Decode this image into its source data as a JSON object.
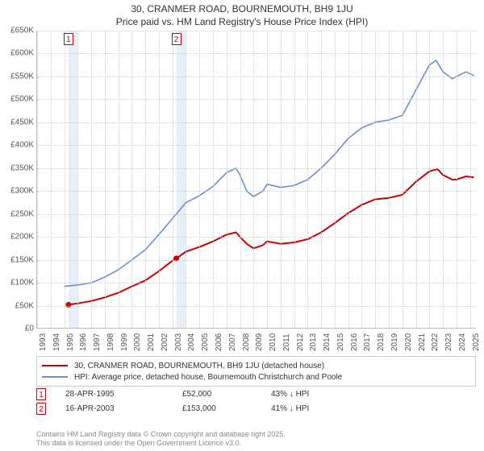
{
  "title": {
    "line1": "30, CRANMER ROAD, BOURNEMOUTH, BH9 1JU",
    "line2": "Price paid vs. HM Land Registry's House Price Index (HPI)"
  },
  "chart": {
    "type": "line",
    "background_color": "#ffffff",
    "grid_color": "#cccccc",
    "axis_color": "#bbbbbb",
    "band_color": "#e6eef7",
    "x_min": 1993,
    "x_max": 2025.5,
    "x_ticks": [
      1993,
      1994,
      1995,
      1996,
      1997,
      1998,
      1999,
      2000,
      2001,
      2002,
      2003,
      2004,
      2005,
      2006,
      2007,
      2008,
      2009,
      2010,
      2011,
      2012,
      2013,
      2014,
      2015,
      2016,
      2017,
      2018,
      2019,
      2020,
      2021,
      2022,
      2023,
      2024,
      2025
    ],
    "y_min": 0,
    "y_max": 650,
    "y_ticks": [
      0,
      50,
      100,
      150,
      200,
      250,
      300,
      350,
      400,
      450,
      500,
      550,
      600,
      650
    ],
    "y_prefix": "£",
    "y_suffix": "K",
    "label_fontsize": 10,
    "bands": [
      {
        "from": 1995.32,
        "to": 1996.0
      },
      {
        "from": 2003.29,
        "to": 2004.0
      }
    ],
    "markers": [
      {
        "label": "1",
        "x": 1995.32,
        "color": "#cc0000"
      },
      {
        "label": "2",
        "x": 2003.29,
        "color": "#cc0000"
      }
    ],
    "series": [
      {
        "name": "price_paid",
        "label": "30, CRANMER ROAD, BOURNEMOUTH, BH9 1JU (detached house)",
        "color": "#cc0000",
        "line_width": 2,
        "dots": [
          {
            "x": 1995.32,
            "y": 52
          },
          {
            "x": 2003.29,
            "y": 153
          }
        ],
        "points": [
          [
            1995.32,
            52
          ],
          [
            1996,
            55
          ],
          [
            1997,
            60
          ],
          [
            1998,
            68
          ],
          [
            1999,
            78
          ],
          [
            2000,
            92
          ],
          [
            2001,
            105
          ],
          [
            2002,
            125
          ],
          [
            2003,
            148
          ],
          [
            2003.29,
            153
          ],
          [
            2004,
            168
          ],
          [
            2005,
            178
          ],
          [
            2006,
            190
          ],
          [
            2007,
            205
          ],
          [
            2007.7,
            210
          ],
          [
            2008,
            200
          ],
          [
            2008.5,
            185
          ],
          [
            2009,
            175
          ],
          [
            2009.7,
            182
          ],
          [
            2010,
            190
          ],
          [
            2011,
            185
          ],
          [
            2012,
            188
          ],
          [
            2013,
            195
          ],
          [
            2014,
            210
          ],
          [
            2015,
            230
          ],
          [
            2016,
            252
          ],
          [
            2017,
            270
          ],
          [
            2018,
            282
          ],
          [
            2019,
            285
          ],
          [
            2020,
            292
          ],
          [
            2021,
            320
          ],
          [
            2022,
            343
          ],
          [
            2022.6,
            348
          ],
          [
            2023,
            335
          ],
          [
            2023.7,
            325
          ],
          [
            2024,
            325
          ],
          [
            2024.7,
            332
          ],
          [
            2025.3,
            330
          ]
        ]
      },
      {
        "name": "hpi",
        "label": "HPI: Average price, detached house, Bournemouth Christchurch and Poole",
        "color": "#6a8fd0",
        "line_width": 1.6,
        "dots": [],
        "points": [
          [
            1995,
            92
          ],
          [
            1996,
            95
          ],
          [
            1997,
            100
          ],
          [
            1998,
            112
          ],
          [
            1999,
            128
          ],
          [
            2000,
            150
          ],
          [
            2001,
            172
          ],
          [
            2002,
            205
          ],
          [
            2003,
            240
          ],
          [
            2004,
            275
          ],
          [
            2005,
            290
          ],
          [
            2006,
            310
          ],
          [
            2007,
            340
          ],
          [
            2007.7,
            350
          ],
          [
            2008,
            335
          ],
          [
            2008.5,
            300
          ],
          [
            2009,
            288
          ],
          [
            2009.7,
            300
          ],
          [
            2010,
            315
          ],
          [
            2011,
            308
          ],
          [
            2012,
            312
          ],
          [
            2013,
            325
          ],
          [
            2014,
            350
          ],
          [
            2015,
            380
          ],
          [
            2016,
            415
          ],
          [
            2017,
            438
          ],
          [
            2018,
            450
          ],
          [
            2019,
            455
          ],
          [
            2020,
            465
          ],
          [
            2021,
            520
          ],
          [
            2022,
            575
          ],
          [
            2022.5,
            585
          ],
          [
            2023,
            560
          ],
          [
            2023.7,
            545
          ],
          [
            2024,
            550
          ],
          [
            2024.7,
            560
          ],
          [
            2025.3,
            552
          ]
        ]
      }
    ]
  },
  "legend": {
    "border_color": "#cccccc"
  },
  "transactions": [
    {
      "badge": "1",
      "badge_color": "#cc0000",
      "date": "28-APR-1995",
      "price": "£52,000",
      "diff": "43% ↓ HPI"
    },
    {
      "badge": "2",
      "badge_color": "#cc0000",
      "date": "16-APR-2003",
      "price": "£153,000",
      "diff": "41% ↓ HPI"
    }
  ],
  "footer": {
    "line1": "Contains HM Land Registry data © Crown copyright and database right 2025.",
    "line2": "This data is licensed under the Open Government Licence v3.0."
  }
}
